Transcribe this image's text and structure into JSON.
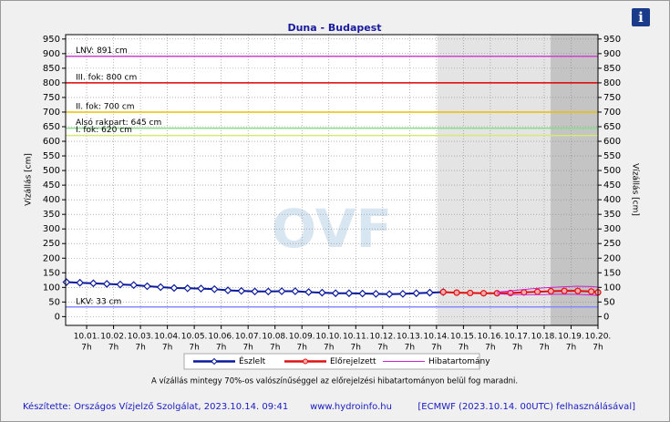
{
  "chart_data": {
    "type": "line",
    "title": "Duna - Budapest",
    "ylabel": "Vízállás [cm]",
    "ylim": [
      -30,
      965
    ],
    "yticks": [
      0,
      50,
      100,
      150,
      200,
      250,
      300,
      350,
      400,
      450,
      500,
      550,
      600,
      650,
      700,
      750,
      800,
      850,
      900,
      950
    ],
    "xlim": [
      -0.78,
      19
    ],
    "xticks": [
      {
        "value": 0,
        "label": "10.01."
      },
      {
        "value": 1,
        "label": "10.02."
      },
      {
        "value": 2,
        "label": "10.03."
      },
      {
        "value": 3,
        "label": "10.04."
      },
      {
        "value": 4,
        "label": "10.05."
      },
      {
        "value": 5,
        "label": "10.06."
      },
      {
        "value": 6,
        "label": "10.07."
      },
      {
        "value": 7,
        "label": "10.08."
      },
      {
        "value": 8,
        "label": "10.09."
      },
      {
        "value": 9,
        "label": "10.10."
      },
      {
        "value": 10,
        "label": "10.11."
      },
      {
        "value": 11,
        "label": "10.12."
      },
      {
        "value": 12,
        "label": "10.13."
      },
      {
        "value": 13,
        "label": "10.14."
      },
      {
        "value": 14,
        "label": "10.15."
      },
      {
        "value": 15,
        "label": "10.16."
      },
      {
        "value": 16,
        "label": "10.17."
      },
      {
        "value": 17,
        "label": "10.18."
      },
      {
        "value": 18,
        "label": "10.19."
      },
      {
        "value": 19,
        "label": "10.20."
      }
    ],
    "xtick_time": "7h",
    "shaded_regions": [
      {
        "from": 13.04,
        "to": 17.24,
        "color": "#e4e4e4"
      },
      {
        "from": 17.24,
        "to": 19,
        "color": "#c4c4c4"
      }
    ],
    "reference_lines": [
      {
        "label": "LNV: 891 cm",
        "value": 891,
        "color": "#cc44cc"
      },
      {
        "label": "III. fok: 800 cm",
        "value": 800,
        "color": "#dd0000"
      },
      {
        "label": "II. fok: 700 cm",
        "value": 700,
        "color": "#e8c000"
      },
      {
        "label": "Alsó rakpart: 645 cm",
        "value": 645,
        "color": "#88dd88"
      },
      {
        "label": "I. fok: 620 cm",
        "value": 620,
        "color": "#d8e878"
      },
      {
        "label": "LKV: 33 cm",
        "value": 33,
        "color": "#8888ff"
      }
    ],
    "series": [
      {
        "name": "Észlelt",
        "color": "#0a1a9a",
        "x": [
          -0.75,
          -0.25,
          0.25,
          0.75,
          1.25,
          1.75,
          2.25,
          2.75,
          3.25,
          3.75,
          4.25,
          4.75,
          5.25,
          5.75,
          6.25,
          6.75,
          7.25,
          7.75,
          8.25,
          8.75,
          9.25,
          9.75,
          10.25,
          10.75,
          11.25,
          11.75,
          12.25,
          12.75,
          13.25
        ],
        "values": [
          118,
          116,
          114,
          112,
          110,
          108,
          104,
          101,
          98,
          97,
          96,
          94,
          90,
          88,
          86,
          86,
          87,
          87,
          84,
          82,
          80,
          80,
          79,
          78,
          77,
          78,
          80,
          82,
          84
        ]
      },
      {
        "name": "Előrejelzett",
        "color": "#dd1111",
        "x": [
          13.25,
          13.75,
          14.25,
          14.75,
          15.25,
          15.75,
          16.25,
          16.75,
          17.25,
          17.75,
          18.25,
          18.75,
          19
        ],
        "values": [
          84,
          82,
          81,
          80,
          80,
          81,
          83,
          85,
          87,
          88,
          88,
          86,
          83
        ]
      },
      {
        "name": "Hibatartomány",
        "color": "#cc22cc",
        "x": [
          15.25,
          15.75,
          16.25,
          16.75,
          17.25,
          17.75,
          18.25,
          18.75,
          19
        ],
        "upper": [
          84,
          88,
          93,
          97,
          100,
          102,
          104,
          103,
          101
        ],
        "lower": [
          78,
          76,
          75,
          75,
          76,
          77,
          76,
          74,
          72
        ]
      }
    ],
    "watermark": "OVF",
    "note": "A vízállás mintegy 70%-os valószínűséggel az előrejelzési hibatartományon belül fog maradni.",
    "footer": [
      "Készítette: Országos Vízjelző Szolgálat, 2023.10.14. 09:41",
      "www.hydroinfo.hu",
      "[ECMWF (2023.10.14. 00UTC) felhasználásával]"
    ],
    "info_icon": "i"
  }
}
